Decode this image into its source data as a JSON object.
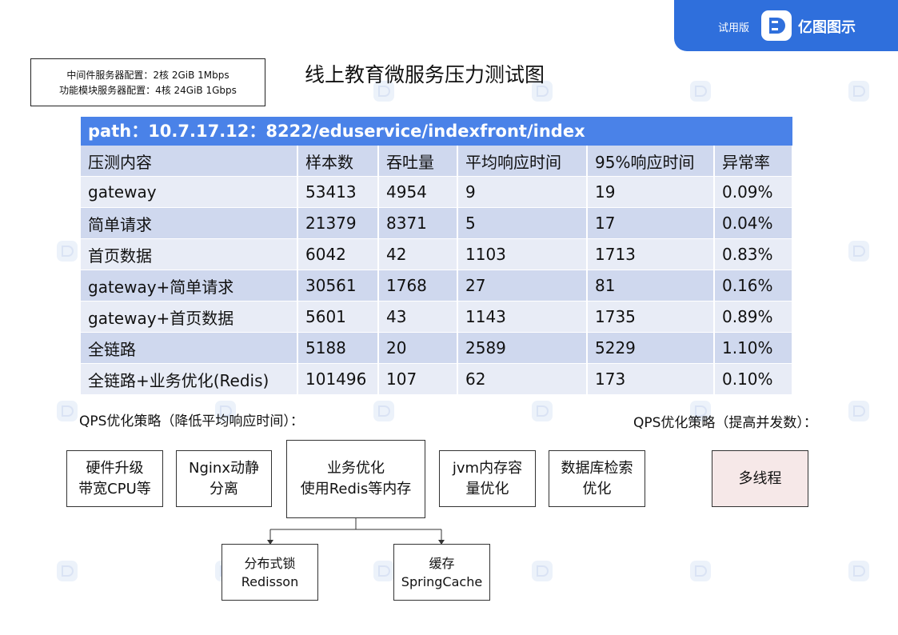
{
  "banner": {
    "trial": "试用版",
    "brand": "亿图图示",
    "logo_icon": "edraw-logo-icon",
    "color": "#2f6fdc"
  },
  "config": {
    "line1": "中间件服务器配置：2核 2GiB 1Mbps",
    "line2": "功能模块服务器配置：4核 24GiB 1Gbps"
  },
  "title": "线上教育微服务压力测试图",
  "table": {
    "path": "path：10.7.17.12：8222/eduservice/indexfront/index",
    "headers": [
      "压测内容",
      "样本数",
      "吞吐量",
      "平均响应时间",
      "95%响应时间",
      "异常率"
    ],
    "rows": [
      [
        "gateway",
        "53413",
        "4954",
        "9",
        "19",
        "0.09%"
      ],
      [
        "简单请求",
        "21379",
        "8371",
        "5",
        "17",
        "0.04%"
      ],
      [
        "首页数据",
        "6042",
        "42",
        "1103",
        "1713",
        "0.83%"
      ],
      [
        "gateway+简单请求",
        "30561",
        "1768",
        "27",
        "81",
        "0.16%"
      ],
      [
        "gateway+首页数据",
        "5601",
        "43",
        "1143",
        "1735",
        "0.89%"
      ],
      [
        "全链路",
        "5188",
        "20",
        "2589",
        "5229",
        "1.10%"
      ],
      [
        "全链路+业务优化(Redis)",
        "101496",
        "107",
        "62",
        "173",
        "0.10%"
      ]
    ]
  },
  "strategies": {
    "left_label": "QPS优化策略（降低平均响应时间）：",
    "right_label": "QPS优化策略（提高并发数）：",
    "nodes": {
      "hardware": "硬件升级\n带宽CPU等",
      "nginx": "Nginx动静\n分离",
      "business": "业务优化\n使用Redis等内存",
      "jvm": "jvm内存容\n量优化",
      "db": "数据库检索\n优化",
      "multithread": "多线程",
      "lock": "分布式锁\nRedisson",
      "cache": "缓存\nSpringCache"
    },
    "multithread_color": "#f6e8e8"
  },
  "watermark": {
    "text": "亿图图示",
    "icon": "edraw-watermark-icon"
  }
}
